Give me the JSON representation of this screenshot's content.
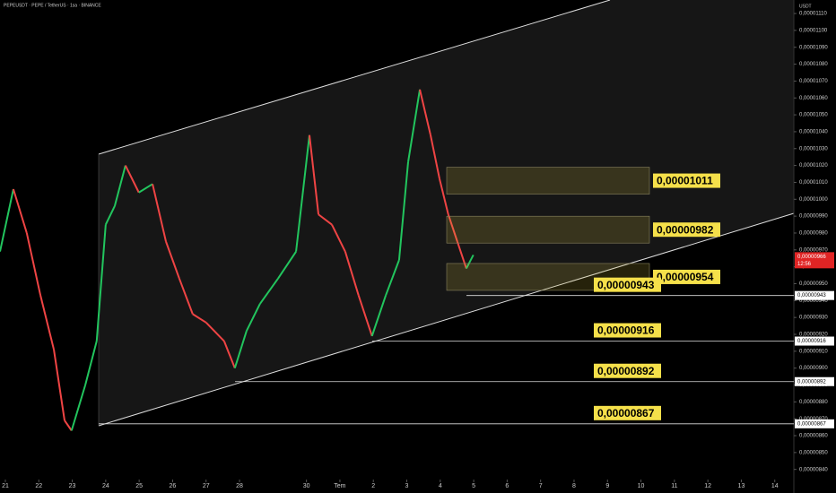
{
  "header": "PEPEUSDT · PEPE / TetherUS · 1sa · BINANCE",
  "chart_data": {
    "type": "line",
    "currency": "USDT",
    "x": [
      -0.16,
      0.24,
      0.64,
      1.05,
      1.45,
      1.77,
      1.98,
      2.39,
      2.73,
      3.0,
      3.27,
      3.59,
      3.99,
      4.4,
      4.8,
      5.2,
      5.6,
      6.0,
      6.54,
      6.86,
      7.21,
      7.61,
      8.15,
      8.69,
      9.09,
      9.36,
      9.76,
      10.16,
      10.56,
      10.96,
      11.37,
      11.77,
      12.04,
      12.39,
      12.71,
      12.98,
      13.24,
      13.51,
      13.78,
      13.99
    ],
    "series": [
      {
        "name": "PEPEUSDT",
        "up_color": "#22c55e",
        "down_color": "#ef4444",
        "values": [
          9.69e-06,
          1.006e-05,
          9.8e-06,
          9.43e-06,
          9.11e-06,
          8.69e-06,
          8.63e-06,
          8.9e-06,
          9.16e-06,
          9.85e-06,
          9.96e-06,
          1.02e-05,
          1.004e-05,
          1.009e-05,
          9.75e-06,
          9.53e-06,
          9.32e-06,
          9.27e-06,
          9.16e-06,
          9e-06,
          9.22e-06,
          9.38e-06,
          9.53e-06,
          9.69e-06,
          1.038e-05,
          9.91e-06,
          9.85e-06,
          9.69e-06,
          9.43e-06,
          9.19e-06,
          9.43e-06,
          9.64e-06,
          1.022e-05,
          1.065e-05,
          1.038e-05,
          1.012e-05,
          9.91e-06,
          9.75e-06,
          9.59e-06,
          9.67e-06
        ]
      }
    ],
    "xlim": [
      -0.16,
      23.57
    ],
    "xticks": [
      {
        "value": 0,
        "label": "21"
      },
      {
        "value": 1,
        "label": "22"
      },
      {
        "value": 2,
        "label": "23"
      },
      {
        "value": 3,
        "label": "24"
      },
      {
        "value": 4,
        "label": "25"
      },
      {
        "value": 5,
        "label": "26"
      },
      {
        "value": 6,
        "label": "27"
      },
      {
        "value": 7,
        "label": "28"
      },
      {
        "value": 9,
        "label": "30"
      },
      {
        "value": 10,
        "label": "Tem"
      },
      {
        "value": 11,
        "label": "2"
      },
      {
        "value": 12,
        "label": "3"
      },
      {
        "value": 13,
        "label": "4"
      },
      {
        "value": 14,
        "label": "5"
      },
      {
        "value": 15,
        "label": "6"
      },
      {
        "value": 16,
        "label": "7"
      },
      {
        "value": 17,
        "label": "8"
      },
      {
        "value": 18,
        "label": "9"
      },
      {
        "value": 19,
        "label": "10"
      },
      {
        "value": 20,
        "label": "11"
      },
      {
        "value": 21,
        "label": "12"
      },
      {
        "value": 22,
        "label": "13"
      },
      {
        "value": 23,
        "label": "14"
      }
    ],
    "ylim": [
      8.34e-06,
      1.118e-05
    ],
    "yticks": [
      {
        "value": 8.4e-06,
        "label": "0,00000840"
      },
      {
        "value": 8.5e-06,
        "label": "0,00000850"
      },
      {
        "value": 8.6e-06,
        "label": "0,00000860"
      },
      {
        "value": 8.7e-06,
        "label": "0,00000870"
      },
      {
        "value": 8.8e-06,
        "label": "0,00000880"
      },
      {
        "value": 8.9e-06,
        "label": "0,00000890"
      },
      {
        "value": 9e-06,
        "label": "0,00000900"
      },
      {
        "value": 9.1e-06,
        "label": "0,00000910"
      },
      {
        "value": 9.2e-06,
        "label": "0,00000920"
      },
      {
        "value": 9.3e-06,
        "label": "0,00000930"
      },
      {
        "value": 9.4e-06,
        "label": "0,00000940"
      },
      {
        "value": 9.5e-06,
        "label": "0,00000950"
      },
      {
        "value": 9.6e-06,
        "label": "0,00000960"
      },
      {
        "value": 9.7e-06,
        "label": "0,00000970"
      },
      {
        "value": 9.8e-06,
        "label": "0,00000980"
      },
      {
        "value": 9.9e-06,
        "label": "0,00000990"
      },
      {
        "value": 1e-05,
        "label": "0,00001000"
      },
      {
        "value": 1.01e-05,
        "label": "0,00001010"
      },
      {
        "value": 1.02e-05,
        "label": "0,00001020"
      },
      {
        "value": 1.03e-05,
        "label": "0,00001030"
      },
      {
        "value": 1.04e-05,
        "label": "0,00001040"
      },
      {
        "value": 1.05e-05,
        "label": "0,00001050"
      },
      {
        "value": 1.06e-05,
        "label": "0,00001060"
      },
      {
        "value": 1.07e-05,
        "label": "0,00001070"
      },
      {
        "value": 1.08e-05,
        "label": "0,00001080"
      },
      {
        "value": 1.09e-05,
        "label": "0,00001090"
      },
      {
        "value": 1.1e-05,
        "label": "0,00001100"
      },
      {
        "value": 1.11e-05,
        "label": "0,00001110"
      }
    ],
    "zones": [
      {
        "value": 1.011e-05,
        "label": "0,00001011"
      },
      {
        "value": 9.82e-06,
        "label": "0,00000982"
      },
      {
        "value": 9.54e-06,
        "label": "0,00000954"
      }
    ],
    "levels": [
      {
        "value": 9.43e-06,
        "label": "0,00000943"
      },
      {
        "value": 9.16e-06,
        "label": "0,00000916"
      },
      {
        "value": 8.92e-06,
        "label": "0,00000892"
      },
      {
        "value": 8.67e-06,
        "label": "0,00000867"
      }
    ],
    "last_price": {
      "value": 9.66e-06,
      "label": "0,00000966",
      "countdown": "12:56"
    }
  }
}
